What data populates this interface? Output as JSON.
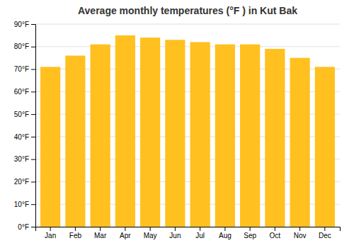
{
  "chart_data": {
    "type": "bar",
    "title": "Average monthly temperatures (°F ) in Kut Bak",
    "categories": [
      "Jan",
      "Feb",
      "Mar",
      "Apr",
      "May",
      "Jun",
      "Jul",
      "Aug",
      "Sep",
      "Oct",
      "Nov",
      "Dec"
    ],
    "values": [
      71,
      76,
      81,
      85,
      84,
      83,
      82,
      81,
      81,
      79,
      75,
      71
    ],
    "color": "#FFC020",
    "ylim": [
      0,
      90
    ],
    "yticks": [
      {
        "value": 0,
        "label": "0°F"
      },
      {
        "value": 10,
        "label": "10°F"
      },
      {
        "value": 20,
        "label": "20°F"
      },
      {
        "value": 30,
        "label": "30°F"
      },
      {
        "value": 40,
        "label": "40°F"
      },
      {
        "value": 50,
        "label": "50°F"
      },
      {
        "value": 60,
        "label": "60°F"
      },
      {
        "value": 70,
        "label": "70°F"
      },
      {
        "value": 80,
        "label": "80°F"
      },
      {
        "value": 90,
        "label": "90°F"
      }
    ],
    "grid": true
  }
}
